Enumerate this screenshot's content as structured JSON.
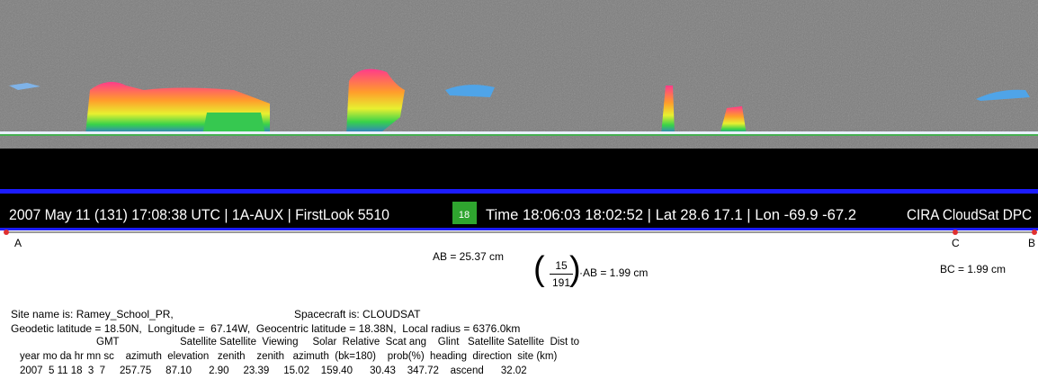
{
  "banner": {
    "left": "2007 May 11 (131) 17:08:38 UTC | 1A-AUX | FirstLook 5510",
    "badge": "18",
    "center": "Time 18:06:03 18:02:52 | Lat 28.6 17.1 | Lon -69.9 -67.2",
    "right": "CIRA CloudSat DPC"
  },
  "points": {
    "a": "A",
    "c": "C",
    "b": "B"
  },
  "measures": {
    "ab": "AB = 25.37 cm",
    "numerator": "15",
    "denominator": "191",
    "ab_scaled": "AB = 1.99 cm",
    "bc": "BC = 1.99 cm"
  },
  "site": {
    "site_name": "Site name is: Ramey_School_PR,",
    "spacecraft": "Spacecraft is: CLOUDSAT",
    "geodetic": "Geodetic latitude = 18.50N,  Longitude =  67.14W,  Geocentric latitude = 18.38N,  Local radius = 6376.0km"
  },
  "table": {
    "header_gmt": "GMT",
    "header_1": "Satellite Satellite  Viewing     Solar  Relative  Scat ang    Glint   Satellite Satellite  Dist to",
    "header_2": "year mo da hr mn sc    azimuth  elevation   zenith    zenith   azimuth  (bk=180)    prob(%)  heading  direction  site (km)",
    "row": "2007  5 11 18  3  7     257.75     87.10      2.90     23.39     15.02    159.40      30.43    347.72    ascend      32.02"
  }
}
